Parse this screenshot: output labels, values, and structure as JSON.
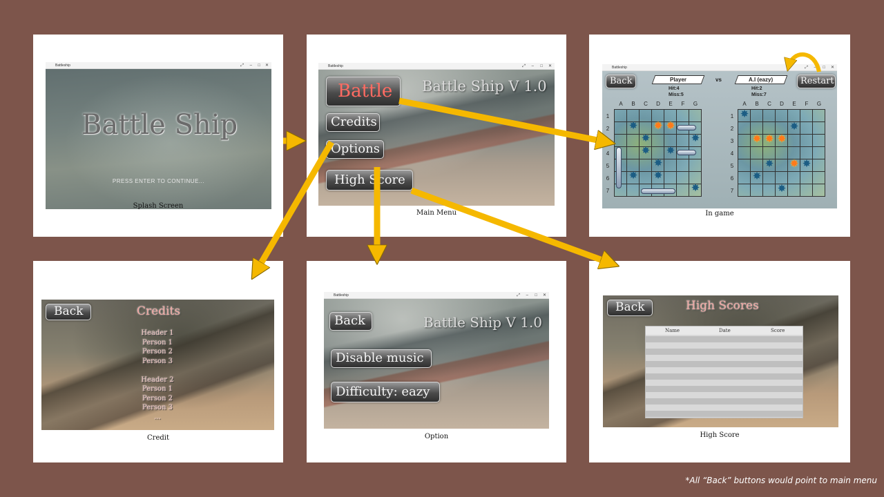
{
  "panels": {
    "splash": {
      "caption": "Splash Screen",
      "window_title": "Battleship",
      "title": "Battle Ship",
      "prompt": "PRESS ENTER TO CONTINUE..."
    },
    "main_menu": {
      "caption": "Main Menu",
      "window_title": "Battleship",
      "title": "Battle Ship V 1.0",
      "buttons": {
        "battle": "Battle",
        "credits": "Credits",
        "options": "Options",
        "high_score": "High Score"
      }
    },
    "in_game": {
      "caption": "In game",
      "window_title": "Battleship",
      "back": "Back",
      "restart": "Restart",
      "vs": "vs",
      "player": {
        "name": "Player",
        "hit": "Hit:4",
        "miss": "Miss:5"
      },
      "ai": {
        "name": "A.I (eazy)",
        "hit": "Hit:2",
        "miss": "Miss:7"
      },
      "columns": [
        "A",
        "B",
        "C",
        "D",
        "E",
        "F",
        "G"
      ],
      "rows": [
        "1",
        "2",
        "3",
        "4",
        "5",
        "6",
        "7"
      ]
    },
    "credits": {
      "caption": "Credit",
      "back": "Back",
      "title": "Credits",
      "lines": [
        "Header 1",
        "Person 1",
        "Person 2",
        "Person 3",
        "",
        "Header 2",
        "Person 1",
        "Person 2",
        "Person 3",
        "..."
      ]
    },
    "options": {
      "caption": "Option",
      "window_title": "Battleship",
      "back": "Back",
      "title": "Battle Ship V 1.0",
      "disable_music": "Disable music",
      "difficulty": "Difficulty: eazy"
    },
    "high_score": {
      "caption": "High Score",
      "back": "Back",
      "title": "High Scores",
      "columns": [
        "Name",
        "Date",
        "Score"
      ]
    }
  },
  "footnote": "*All “Back” buttons would point to main menu",
  "colors": {
    "background": "#7d554b",
    "arrow": "#f5b800",
    "panel": "#ffffff"
  }
}
